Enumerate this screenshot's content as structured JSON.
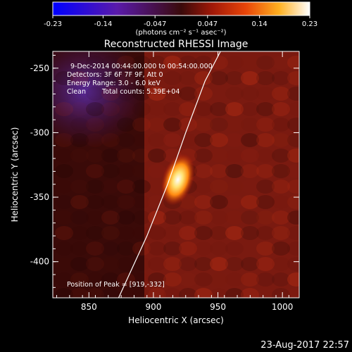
{
  "colorbar": {
    "ticks": [
      "-0.23",
      "-0.14",
      "-0.047",
      "0.047",
      "0.14",
      "0.23"
    ],
    "unit_label": "(photons cm⁻² s⁻¹ asec⁻²)",
    "range": [
      -0.23,
      0.23
    ]
  },
  "chart_data": {
    "type": "heatmap",
    "title": "Reconstructed RHESSI Image",
    "xlabel": "Heliocentric X (arcsec)",
    "ylabel": "Heliocentric Y (arcsec)",
    "xlim": [
      822,
      1013
    ],
    "ylim": [
      -428,
      -237
    ],
    "x_ticks": [
      850,
      900,
      950,
      1000
    ],
    "y_ticks": [
      -250,
      -300,
      -350,
      -400
    ],
    "grid": false,
    "annotations": [
      "9-Dec-2014 00:44:00.000 to 00:54:00.000",
      "Detectors: 3F 6F 7F 9F, Att 0",
      "Energy Range: 3.0 - 6.0 keV",
      "Clean",
      "Total counts: 5.39E+04"
    ],
    "peak_label": "Position of Peak = [919,-332]",
    "peak": {
      "x": 919,
      "y": -332,
      "value": 0.23
    },
    "limb_curve": [
      [
        873,
        -428
      ],
      [
        895,
        -380
      ],
      [
        911,
        -340
      ],
      [
        925,
        -300
      ],
      [
        940,
        -260
      ],
      [
        952,
        -237
      ]
    ]
  },
  "footer": {
    "timestamp": "23-Aug-2017 22:57"
  }
}
